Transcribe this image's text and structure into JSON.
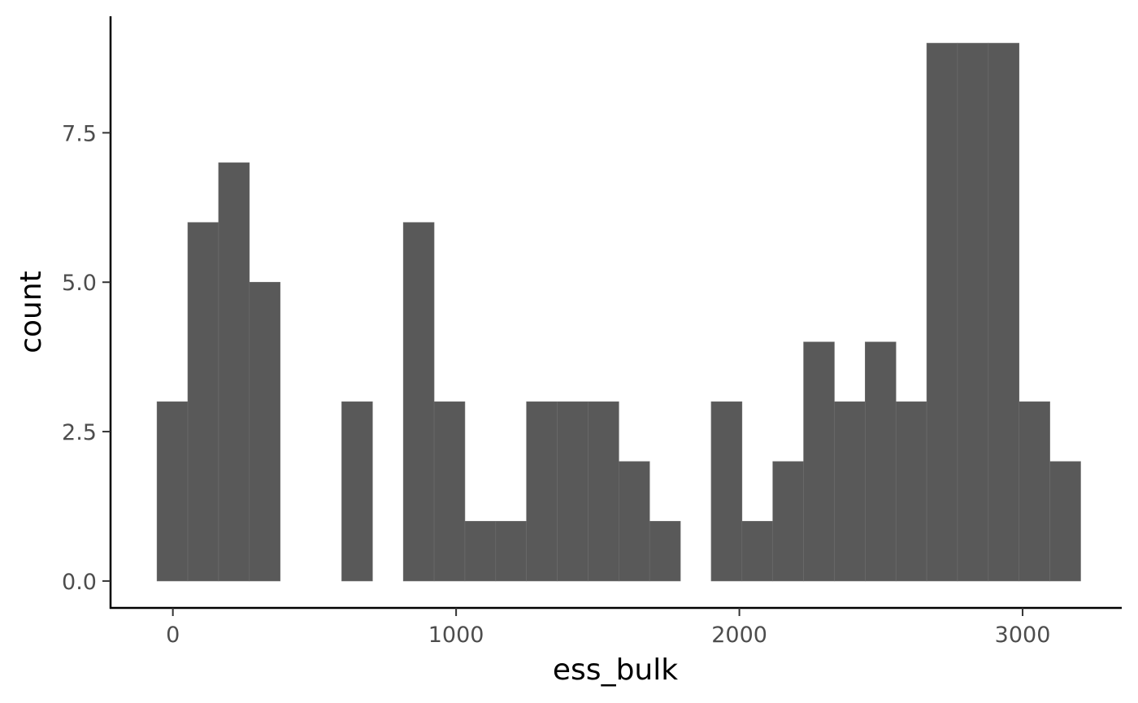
{
  "chart_data": {
    "type": "bar",
    "title": "",
    "xlabel": "ess_bulk",
    "ylabel": "count",
    "xlim": [
      -220,
      3350
    ],
    "ylim": [
      -0.45,
      9.45
    ],
    "x_ticks": [
      {
        "value": 0,
        "label": "0"
      },
      {
        "value": 1000,
        "label": "1000"
      },
      {
        "value": 2000,
        "label": "2000"
      },
      {
        "value": 3000,
        "label": "3000"
      }
    ],
    "y_ticks": [
      {
        "value": 0,
        "label": "0.0"
      },
      {
        "value": 2.5,
        "label": "2.5"
      },
      {
        "value": 5,
        "label": "5.0"
      },
      {
        "value": 7.5,
        "label": "7.5"
      }
    ],
    "bin_start": -56,
    "bin_width": 108.7,
    "counts": [
      3,
      6,
      7,
      5,
      0,
      0,
      3,
      0,
      6,
      3,
      1,
      1,
      3,
      3,
      3,
      2,
      1,
      0,
      3,
      1,
      2,
      4,
      3,
      4,
      3,
      9,
      9,
      9,
      3,
      2
    ],
    "grid": false,
    "legend": "none",
    "colors": {
      "bar_fill": "#595959",
      "bar_outline": "#6e6e6e",
      "axis": "#000000",
      "tick_text": "#4d4d4d"
    }
  }
}
